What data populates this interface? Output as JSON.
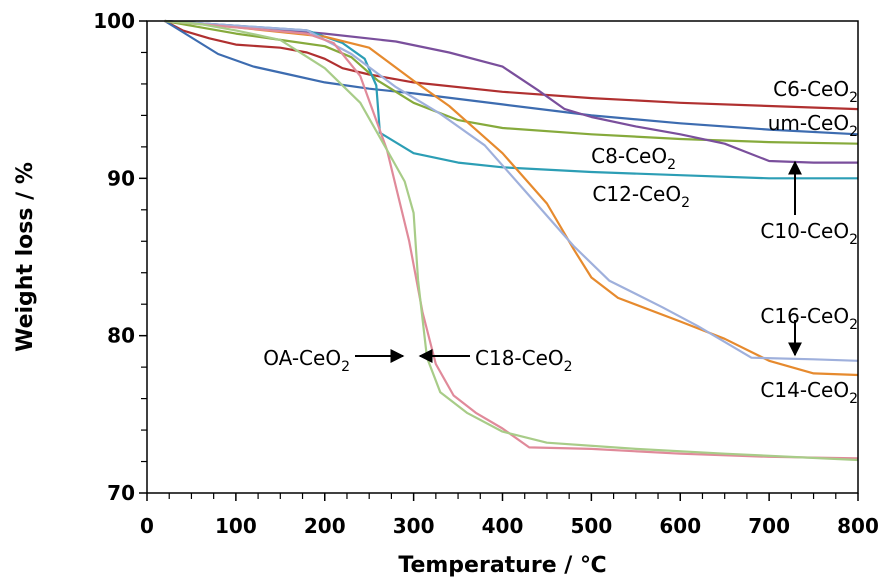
{
  "chart_data": {
    "type": "line",
    "title": "",
    "xlabel": "Temperature / ℃",
    "ylabel": "Weight loss / %",
    "xlim": [
      0,
      800
    ],
    "ylim": [
      70,
      100
    ],
    "xticks": [
      "0",
      "100",
      "200",
      "300",
      "400",
      "500",
      "600",
      "700",
      "800"
    ],
    "yticks": [
      "70",
      "80",
      "90",
      "100"
    ],
    "grid": false,
    "legend": "none (inline labels)",
    "series": [
      {
        "name": "C6-CeO2",
        "color": "#b03030",
        "points": [
          [
            20,
            100
          ],
          [
            40,
            99.4
          ],
          [
            70,
            98.9
          ],
          [
            100,
            98.5
          ],
          [
            150,
            98.3
          ],
          [
            180,
            98.0
          ],
          [
            200,
            97.6
          ],
          [
            220,
            97.0
          ],
          [
            250,
            96.6
          ],
          [
            300,
            96.1
          ],
          [
            400,
            95.5
          ],
          [
            500,
            95.1
          ],
          [
            600,
            94.8
          ],
          [
            700,
            94.6
          ],
          [
            800,
            94.4
          ]
        ]
      },
      {
        "name": "um-CeO2",
        "color": "#3d6cb0",
        "points": [
          [
            20,
            100
          ],
          [
            40,
            99.3
          ],
          [
            80,
            97.9
          ],
          [
            120,
            97.1
          ],
          [
            160,
            96.6
          ],
          [
            200,
            96.1
          ],
          [
            250,
            95.7
          ],
          [
            300,
            95.4
          ],
          [
            400,
            94.7
          ],
          [
            500,
            94.0
          ],
          [
            600,
            93.5
          ],
          [
            700,
            93.1
          ],
          [
            800,
            92.8
          ]
        ]
      },
      {
        "name": "C8-CeO2",
        "color": "#86aa3c",
        "points": [
          [
            20,
            100
          ],
          [
            60,
            99.6
          ],
          [
            100,
            99.2
          ],
          [
            150,
            98.8
          ],
          [
            200,
            98.4
          ],
          [
            230,
            97.7
          ],
          [
            260,
            96.2
          ],
          [
            300,
            94.8
          ],
          [
            350,
            93.7
          ],
          [
            400,
            93.2
          ],
          [
            500,
            92.8
          ],
          [
            600,
            92.5
          ],
          [
            700,
            92.3
          ],
          [
            800,
            92.2
          ]
        ]
      },
      {
        "name": "C10-CeO2",
        "color": "#7a4f9c",
        "points": [
          [
            20,
            100
          ],
          [
            100,
            99.7
          ],
          [
            200,
            99.2
          ],
          [
            280,
            98.7
          ],
          [
            340,
            98.0
          ],
          [
            400,
            97.1
          ],
          [
            440,
            95.6
          ],
          [
            470,
            94.4
          ],
          [
            500,
            93.9
          ],
          [
            550,
            93.3
          ],
          [
            600,
            92.8
          ],
          [
            650,
            92.2
          ],
          [
            700,
            91.1
          ],
          [
            750,
            91.0
          ],
          [
            800,
            91.0
          ]
        ]
      },
      {
        "name": "C12-CeO2",
        "color": "#2c9eb5",
        "points": [
          [
            20,
            100
          ],
          [
            100,
            99.7
          ],
          [
            180,
            99.4
          ],
          [
            220,
            98.6
          ],
          [
            245,
            97.6
          ],
          [
            258,
            95.9
          ],
          [
            262,
            92.9
          ],
          [
            300,
            91.6
          ],
          [
            350,
            91.0
          ],
          [
            400,
            90.7
          ],
          [
            500,
            90.4
          ],
          [
            600,
            90.2
          ],
          [
            700,
            90.0
          ],
          [
            800,
            90.0
          ]
        ]
      },
      {
        "name": "C14-CeO2",
        "color": "#e68a2e",
        "points": [
          [
            20,
            100
          ],
          [
            100,
            99.6
          ],
          [
            200,
            99.0
          ],
          [
            250,
            98.3
          ],
          [
            300,
            96.2
          ],
          [
            340,
            94.6
          ],
          [
            400,
            91.6
          ],
          [
            450,
            88.4
          ],
          [
            480,
            85.5
          ],
          [
            500,
            83.7
          ],
          [
            530,
            82.4
          ],
          [
            600,
            80.9
          ],
          [
            650,
            79.8
          ],
          [
            700,
            78.4
          ],
          [
            750,
            77.6
          ],
          [
            800,
            77.5
          ]
        ]
      },
      {
        "name": "C16-CeO2",
        "color": "#9fb0dc",
        "points": [
          [
            20,
            100
          ],
          [
            100,
            99.7
          ],
          [
            180,
            99.4
          ],
          [
            230,
            97.9
          ],
          [
            280,
            95.8
          ],
          [
            330,
            94.1
          ],
          [
            380,
            92.1
          ],
          [
            430,
            88.9
          ],
          [
            480,
            85.7
          ],
          [
            520,
            83.5
          ],
          [
            580,
            81.8
          ],
          [
            620,
            80.6
          ],
          [
            680,
            78.6
          ],
          [
            750,
            78.5
          ],
          [
            800,
            78.4
          ]
        ]
      },
      {
        "name": "C18-CeO2",
        "color": "#e08a9a",
        "points": [
          [
            20,
            100
          ],
          [
            100,
            99.6
          ],
          [
            180,
            99.2
          ],
          [
            210,
            98.6
          ],
          [
            240,
            96.5
          ],
          [
            270,
            91.8
          ],
          [
            295,
            86.0
          ],
          [
            310,
            81.5
          ],
          [
            325,
            78.2
          ],
          [
            345,
            76.2
          ],
          [
            370,
            75.1
          ],
          [
            400,
            74.1
          ],
          [
            430,
            72.9
          ],
          [
            500,
            72.8
          ],
          [
            600,
            72.5
          ],
          [
            700,
            72.3
          ],
          [
            800,
            72.2
          ]
        ]
      },
      {
        "name": "OA-CeO2",
        "color": "#a8cc88",
        "points": [
          [
            20,
            100
          ],
          [
            60,
            99.8
          ],
          [
            100,
            99.4
          ],
          [
            150,
            98.8
          ],
          [
            200,
            97.0
          ],
          [
            240,
            94.8
          ],
          [
            270,
            91.8
          ],
          [
            290,
            89.8
          ],
          [
            300,
            87.8
          ],
          [
            305,
            83.5
          ],
          [
            315,
            78.6
          ],
          [
            330,
            76.4
          ],
          [
            360,
            75.1
          ],
          [
            400,
            73.9
          ],
          [
            450,
            73.2
          ],
          [
            550,
            72.8
          ],
          [
            650,
            72.5
          ],
          [
            800,
            72.1
          ]
        ]
      }
    ],
    "annotations": [
      {
        "text": "C6-CeO2",
        "base": "C6-CeO",
        "sub": "2"
      },
      {
        "text": "um-CeO2",
        "base": "um-CeO",
        "sub": "2"
      },
      {
        "text": "C8-CeO2",
        "base": "C8-CeO",
        "sub": "2"
      },
      {
        "text": "C12-CeO2",
        "base": "C12-CeO",
        "sub": "2"
      },
      {
        "text": "C10-CeO2",
        "base": "C10-CeO",
        "sub": "2"
      },
      {
        "text": "C16-CeO2",
        "base": "C16-CeO",
        "sub": "2"
      },
      {
        "text": "C14-CeO2",
        "base": "C14-CeO",
        "sub": "2"
      },
      {
        "text": "OA-CeO2",
        "base": "OA-CeO",
        "sub": "2"
      },
      {
        "text": "C18-CeO2",
        "base": "C18-CeO",
        "sub": "2"
      }
    ]
  }
}
